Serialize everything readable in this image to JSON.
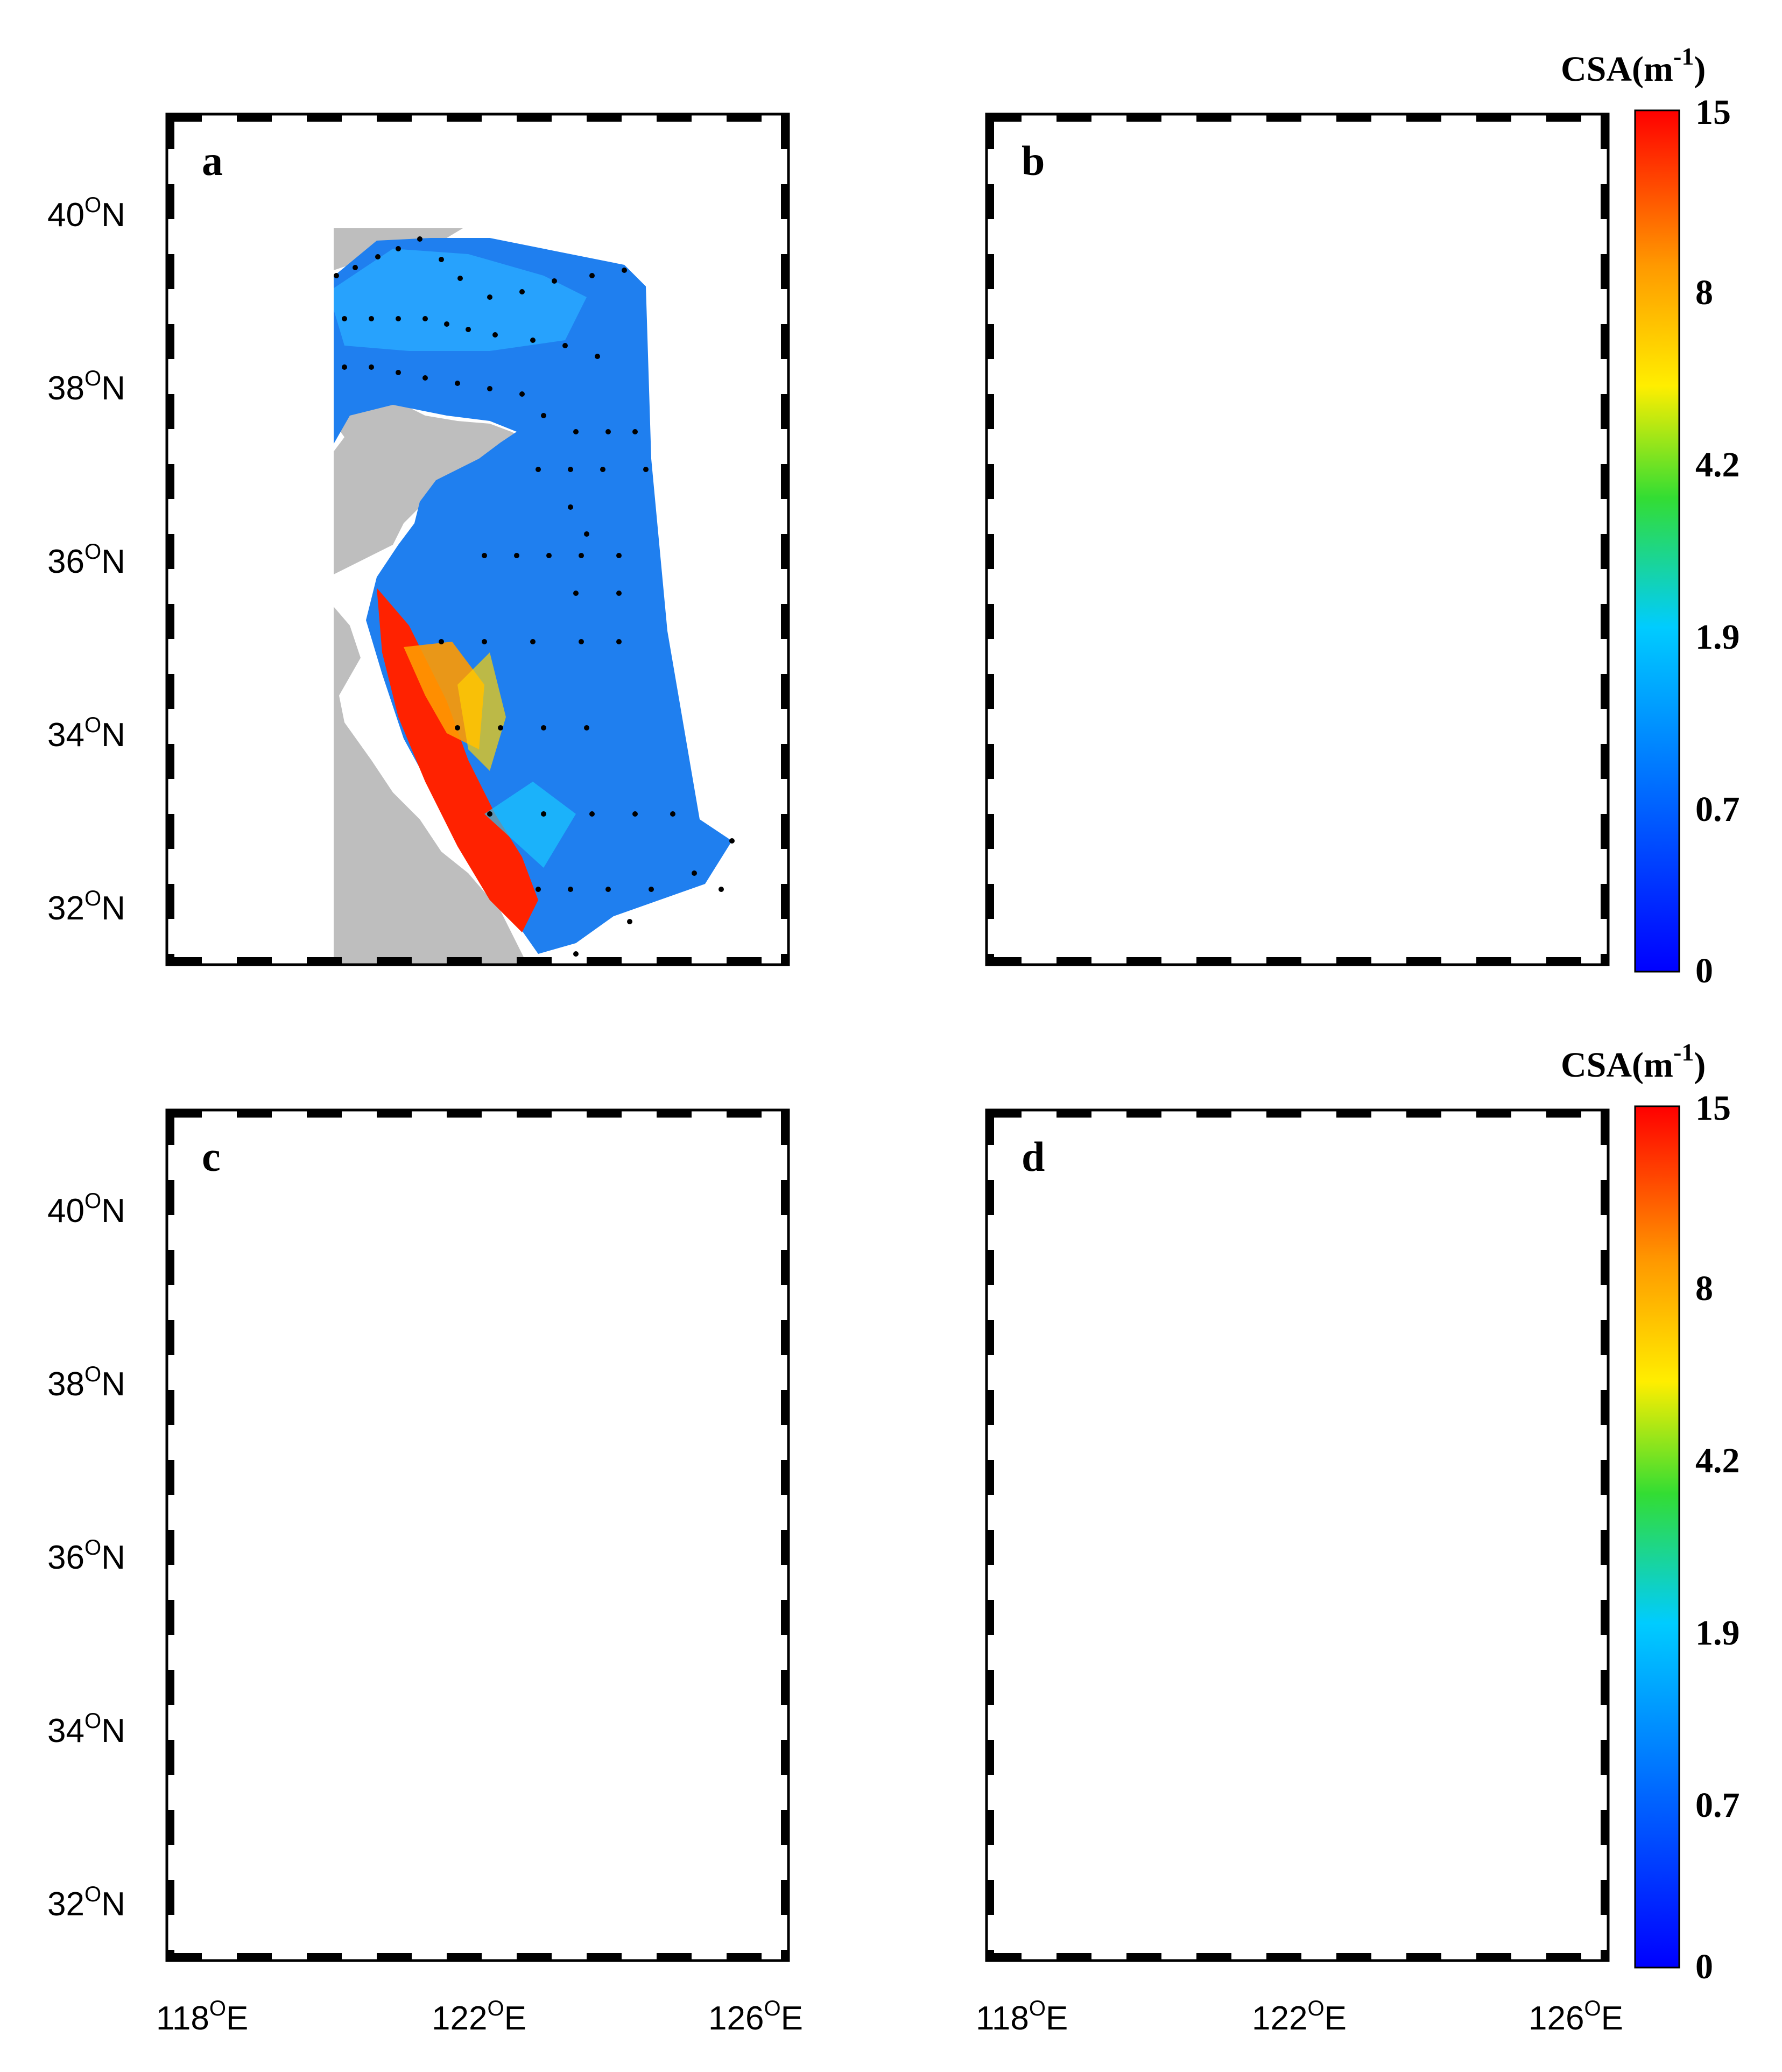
{
  "figure": {
    "panels": [
      {
        "id": "a",
        "label": "a"
      },
      {
        "id": "b",
        "label": "b"
      },
      {
        "id": "c",
        "label": "c"
      },
      {
        "id": "d",
        "label": "d"
      }
    ],
    "y_ticks": [
      {
        "lat": 40,
        "deg": "40",
        "sup": "O",
        "suffix": "N"
      },
      {
        "lat": 38,
        "deg": "38",
        "sup": "O",
        "suffix": "N"
      },
      {
        "lat": 36,
        "deg": "36",
        "sup": "O",
        "suffix": "N"
      },
      {
        "lat": 34,
        "deg": "34",
        "sup": "O",
        "suffix": "N"
      },
      {
        "lat": 32,
        "deg": "32",
        "sup": "O",
        "suffix": "N"
      }
    ],
    "x_ticks": [
      {
        "lon": 118,
        "deg": "118",
        "sup": "O",
        "suffix": "E"
      },
      {
        "lon": 122,
        "deg": "122",
        "sup": "O",
        "suffix": "E"
      },
      {
        "lon": 126,
        "deg": "126",
        "sup": "O",
        "suffix": "E"
      }
    ],
    "colorbar": {
      "title_prefix": "CSA(m",
      "title_exp": "-1",
      "title_suffix": ")",
      "tick_labels": [
        "15",
        "8",
        "4.2",
        "1.9",
        "0.7",
        "0"
      ],
      "colors": [
        "#ff0000",
        "#ff9900",
        "#ffee00",
        "#33dd33",
        "#00ccff",
        "#0066ff",
        "#0000ff"
      ]
    },
    "colors": {
      "land": "#bebebe",
      "sea": "#ffffff",
      "frame": "#000000",
      "station": "#000000"
    }
  },
  "map_data": {
    "extent": {
      "lon": [
        117.0,
        126.0
      ],
      "lat": [
        31.1,
        41.0
      ]
    },
    "field": "CSA",
    "unit": "m-1",
    "color_scale": [
      0,
      0.7,
      1.9,
      4.2,
      8,
      15
    ]
  }
}
